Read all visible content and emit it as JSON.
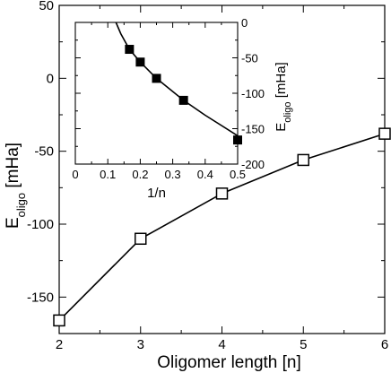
{
  "chart_data": [
    {
      "type": "line",
      "xlabel": "Oligomer length [n]",
      "ylabel_main": "E",
      "ylabel_sub": "oligo",
      "ylabel_unit": " [mHa]",
      "xlim": [
        2,
        6
      ],
      "ylim": [
        -175,
        50
      ],
      "xticks": [
        "2",
        "3",
        "4",
        "5",
        "6"
      ],
      "xtick_values": [
        2,
        3,
        4,
        5,
        6
      ],
      "yticks": [
        "-150",
        "-100",
        "-50",
        "0",
        "50"
      ],
      "ytick_values": [
        -150,
        -100,
        -50,
        0,
        50
      ],
      "series": [
        {
          "marker": "open-square",
          "x": [
            2,
            3,
            4,
            5,
            6
          ],
          "y": [
            -166,
            -110,
            -79,
            -56,
            -38
          ]
        }
      ],
      "grid": false
    },
    {
      "type": "line",
      "placement": "inset-top-left",
      "xlabel": "1/n",
      "ylabel_main": "E",
      "ylabel_sub": "oligo",
      "ylabel_unit": " [mHa]",
      "xlim": [
        0,
        0.5
      ],
      "ylim": [
        -200,
        0
      ],
      "xticks": [
        "0",
        "0.1",
        "0.2",
        "0.3",
        "0.4",
        "0.5"
      ],
      "xtick_values": [
        0,
        0.1,
        0.2,
        0.3,
        0.4,
        0.5
      ],
      "yticks": [
        "-200",
        "-150",
        "-100",
        "-50",
        "0"
      ],
      "ytick_values": [
        -200,
        -150,
        -100,
        -50,
        0
      ],
      "yaxis_side": "right",
      "series": [
        {
          "marker": "filled-square",
          "x": [
            0.5,
            0.3333,
            0.25,
            0.2,
            0.1667
          ],
          "y": [
            -166,
            -110,
            -79,
            -56,
            -38
          ]
        },
        {
          "marker": "none",
          "style": "fit-curve",
          "x": [
            0.125,
            0.14,
            0.1667,
            0.2,
            0.25,
            0.3333,
            0.4,
            0.5
          ],
          "y": [
            0,
            -16,
            -38,
            -56,
            -79,
            -110,
            -131,
            -160
          ]
        }
      ],
      "grid": false
    }
  ]
}
